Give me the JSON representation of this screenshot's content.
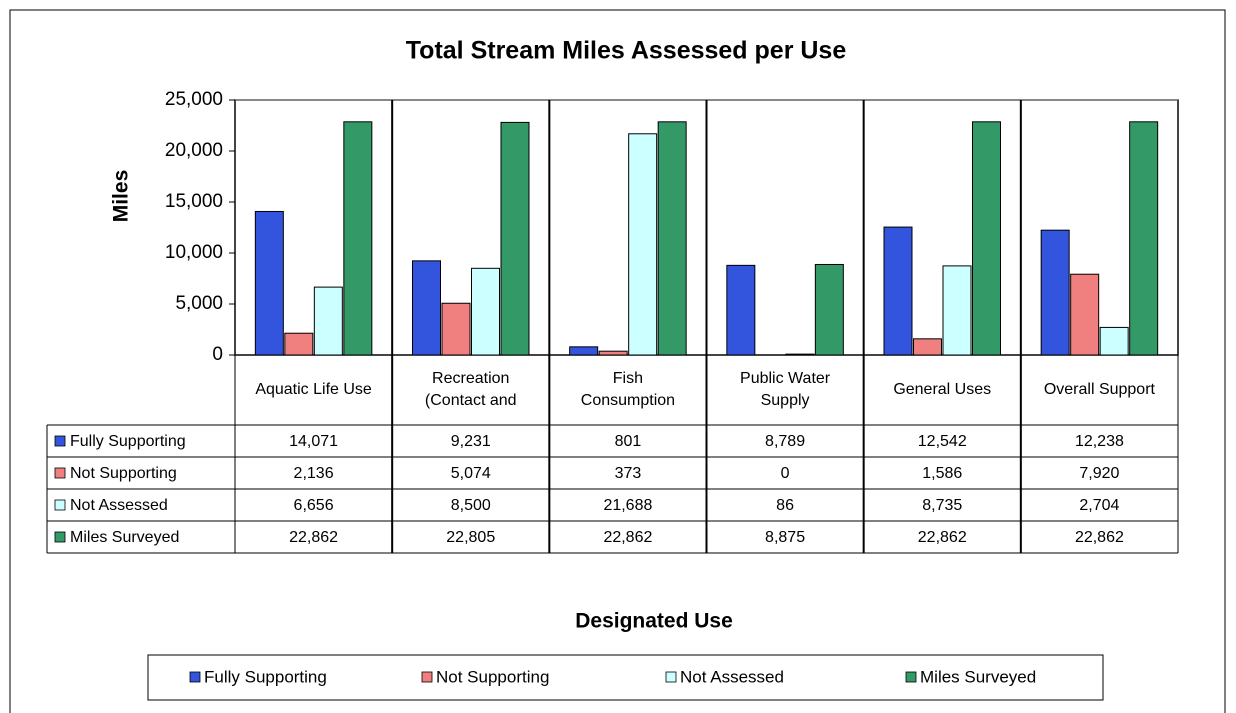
{
  "chart_data": {
    "type": "bar",
    "title": "Total Stream Miles Assessed per Use",
    "y_label": "Miles",
    "x_label": "Designated Use",
    "categories": [
      "Aquatic Life Use",
      "Recreation (Contact and",
      "Fish Consumption",
      "Public Water Supply",
      "General Uses",
      "Overall Support"
    ],
    "series": [
      {
        "name": "Fully Supporting",
        "color": "#3355dd",
        "values": [
          14071,
          9231,
          801,
          8789,
          12542,
          12238
        ],
        "value_labels": [
          "14,071",
          "9,231",
          "801",
          "8,789",
          "12,542",
          "12,238"
        ]
      },
      {
        "name": "Not Supporting",
        "color": "#f08080",
        "values": [
          2136,
          5074,
          373,
          0,
          1586,
          7920
        ],
        "value_labels": [
          "2,136",
          "5,074",
          "373",
          "0",
          "1,586",
          "7,920"
        ]
      },
      {
        "name": "Not Assessed",
        "color": "#ccffff",
        "values": [
          6656,
          8500,
          21688,
          86,
          8735,
          2704
        ],
        "value_labels": [
          "6,656",
          "8,500",
          "21,688",
          "86",
          "8,735",
          "2,704"
        ]
      },
      {
        "name": "Miles Surveyed",
        "color": "#339966",
        "values": [
          22862,
          22805,
          22862,
          8875,
          22862,
          22862
        ],
        "value_labels": [
          "22,862",
          "22,805",
          "22,862",
          "8,875",
          "22,862",
          "22,862"
        ]
      }
    ],
    "ylim": [
      0,
      25000
    ],
    "yticks": [
      0,
      {
        "value": 5000,
        "label": "5,000"
      },
      {
        "value": 10000,
        "label": "10,000"
      },
      {
        "value": 15000,
        "label": "15,000"
      },
      {
        "value": 20000,
        "label": "20,000"
      },
      {
        "value": 25000,
        "label": "25,000"
      }
    ],
    "legend": "bottom"
  }
}
